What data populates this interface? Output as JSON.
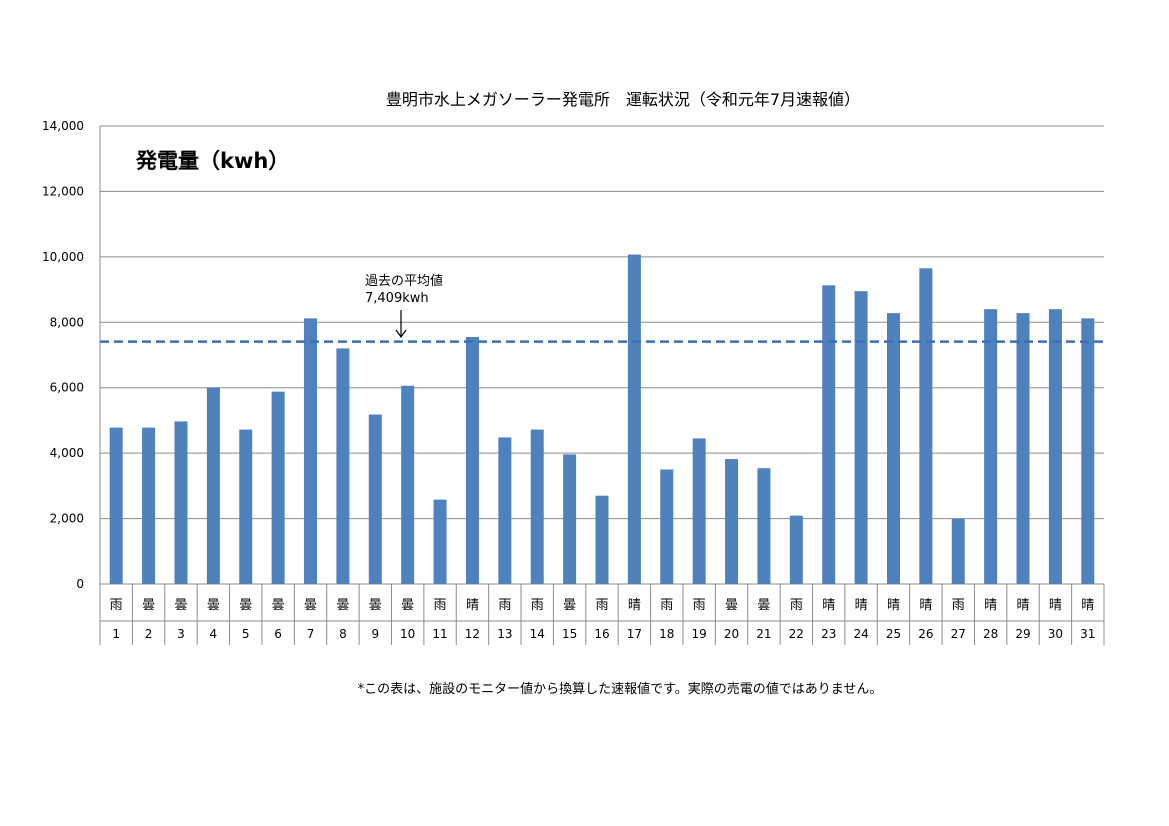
{
  "chart_data": {
    "type": "bar",
    "title": "豊明市水上メガソーラー発電所　運転状況（令和元年7月速報値）",
    "ylabel": "発電量（kwh）",
    "xlabel": "",
    "ylim": [
      0,
      14000
    ],
    "yticks": [
      "0",
      "2,000",
      "4,000",
      "6,000",
      "8,000",
      "10,000",
      "12,000",
      "14,000"
    ],
    "grid": true,
    "categories": [
      "1",
      "2",
      "3",
      "4",
      "5",
      "6",
      "7",
      "8",
      "9",
      "10",
      "11",
      "12",
      "13",
      "14",
      "15",
      "16",
      "17",
      "18",
      "19",
      "20",
      "21",
      "22",
      "23",
      "24",
      "25",
      "26",
      "27",
      "28",
      "29",
      "30",
      "31"
    ],
    "weather": [
      "雨",
      "曇",
      "曇",
      "曇",
      "曇",
      "曇",
      "曇",
      "曇",
      "曇",
      "曇",
      "雨",
      "晴",
      "雨",
      "雨",
      "曇",
      "雨",
      "晴",
      "雨",
      "雨",
      "曇",
      "曇",
      "雨",
      "晴",
      "晴",
      "晴",
      "晴",
      "雨",
      "晴",
      "晴",
      "晴",
      "晴"
    ],
    "values": [
      4780,
      4780,
      4970,
      6000,
      4720,
      5880,
      8120,
      7200,
      5180,
      6060,
      2580,
      7550,
      4480,
      4720,
      3960,
      2700,
      10070,
      3500,
      4450,
      3820,
      3540,
      2090,
      9130,
      8950,
      8280,
      9650,
      1990,
      8400,
      8280,
      8400,
      8120
    ],
    "reference_line": {
      "value": 7409,
      "label_line1": "過去の平均値",
      "label_line2": "7,409kwh"
    },
    "bar_color": "#4f81bd",
    "reference_color": "#3a6fb5"
  },
  "footnote": "*この表は、施設のモニター値から換算した速報値です。実際の売電の値ではありません。"
}
